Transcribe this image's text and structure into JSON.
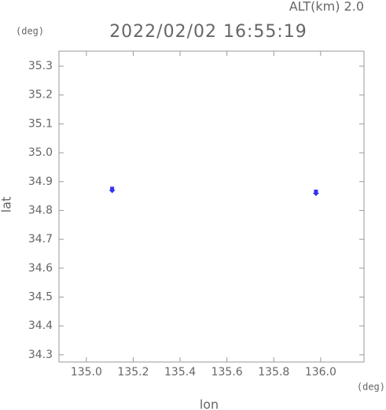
{
  "chart_data": {
    "type": "scatter",
    "title": "2022/02/02 16:55:19",
    "subtitle": "ALT(km) 2.0",
    "x_label": "lon",
    "y_label": "lat",
    "x_unit": "(deg)",
    "y_unit": "(deg)",
    "x": [
      135.11,
      135.98
    ],
    "values": [
      34.87,
      34.86
    ],
    "color": "#3333ee",
    "xlim": [
      134.883,
      136.185
    ],
    "ylim": [
      34.275,
      35.352
    ],
    "xticks": [
      {
        "value": 135.0,
        "label": "135.0"
      },
      135.2,
      135.4,
      135.6,
      135.8,
      {
        "value": 136.0,
        "label": "136.0"
      }
    ],
    "yticks": [
      34.3,
      34.4,
      34.5,
      34.6,
      34.7,
      34.8,
      34.9,
      {
        "value": 35.0,
        "label": "35.0"
      },
      35.1,
      35.2,
      35.3
    ]
  }
}
